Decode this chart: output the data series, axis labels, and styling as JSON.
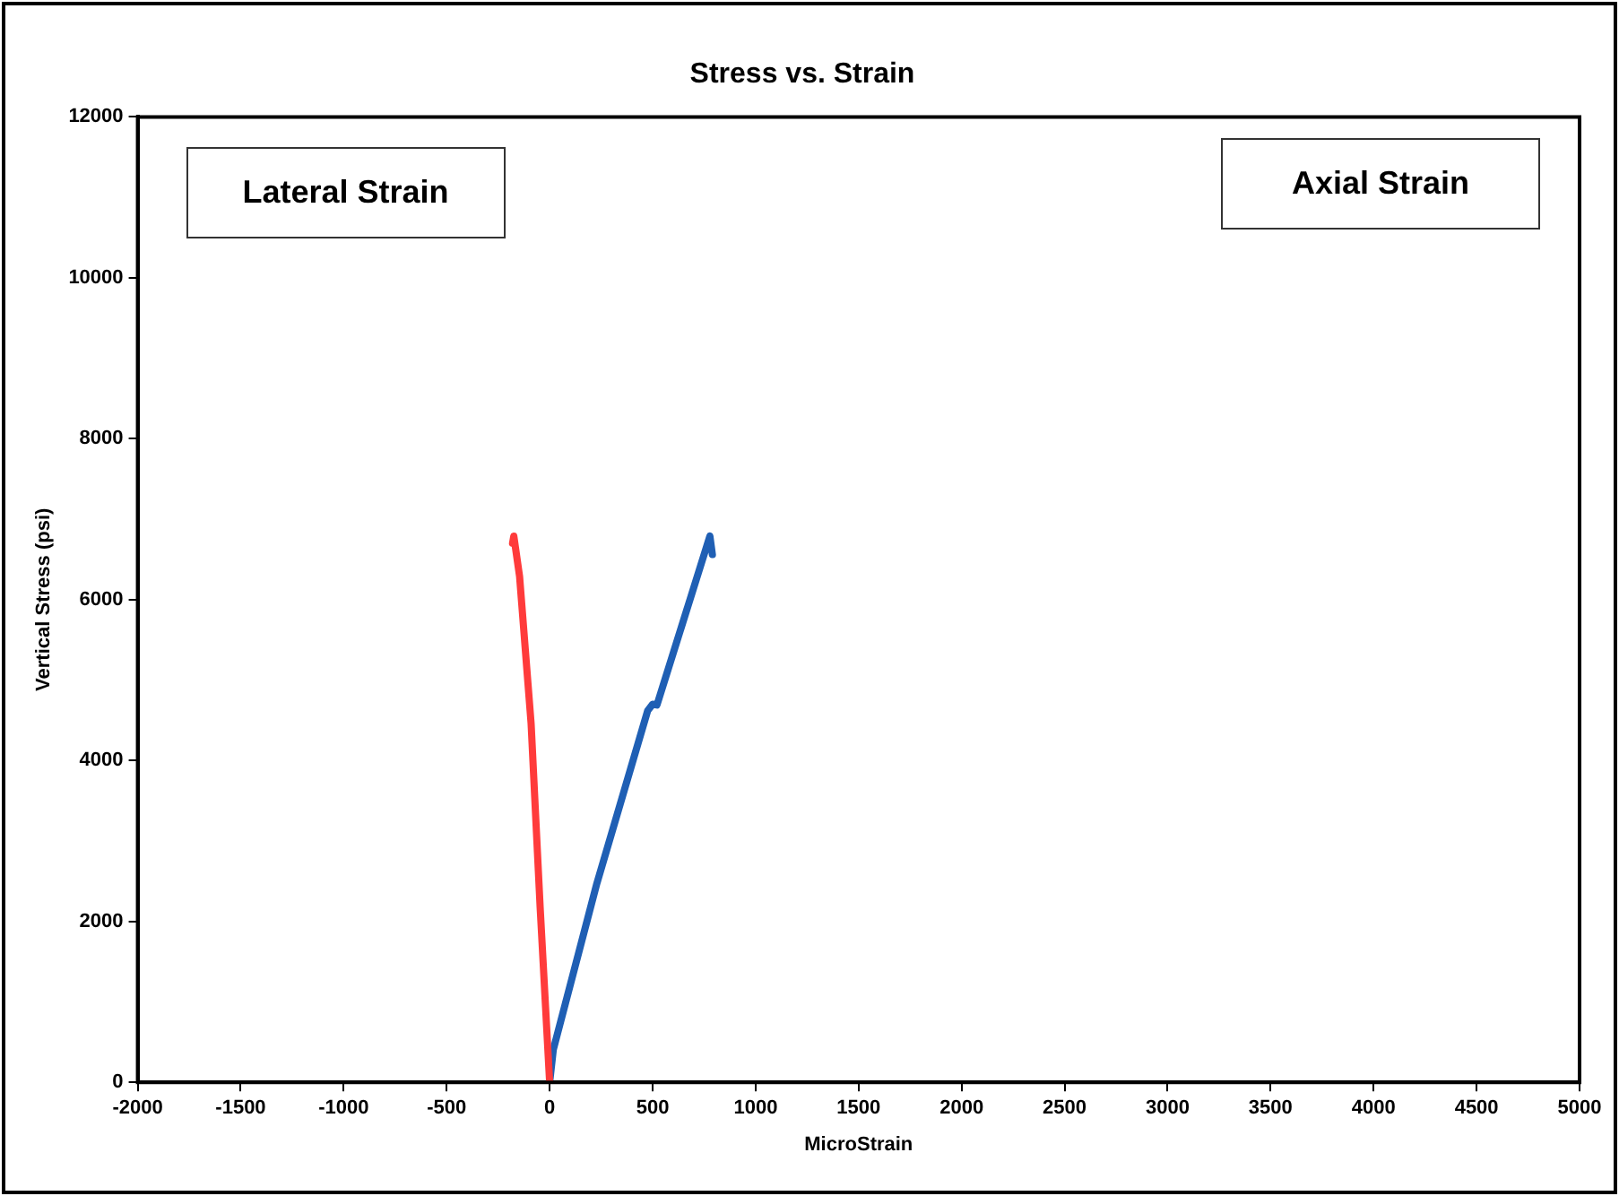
{
  "chart_data": {
    "type": "line",
    "title": "Stress vs. Strain",
    "xlabel": "MicroStrain",
    "ylabel": "Vertical Stress (psi)",
    "xlim": [
      -2000,
      5000
    ],
    "xticks": [
      -2000,
      -1500,
      -1000,
      -500,
      0,
      500,
      1000,
      1500,
      2000,
      2500,
      3000,
      3500,
      4000,
      4500,
      5000
    ],
    "ylim": [
      0,
      12000
    ],
    "yticks": [
      0,
      2000,
      4000,
      6000,
      8000,
      10000,
      12000
    ],
    "grid": false,
    "legend": false,
    "marker": "none",
    "line_style": "solid",
    "annotations": [
      "Lateral Strain",
      "Axial Strain"
    ],
    "series": [
      {
        "color": "#ff3b3b",
        "x": [
          0,
          -46,
          -90,
          -146,
          -174,
          -180
        ],
        "values": [
          0,
          2170,
          4460,
          6290,
          6790,
          6700
        ]
      },
      {
        "color": "#1f5fb4",
        "x": [
          0,
          18,
          229,
          476,
          500,
          521,
          778,
          790
        ],
        "values": [
          0,
          410,
          2470,
          4620,
          4700,
          4690,
          6790,
          6560
        ]
      }
    ]
  }
}
